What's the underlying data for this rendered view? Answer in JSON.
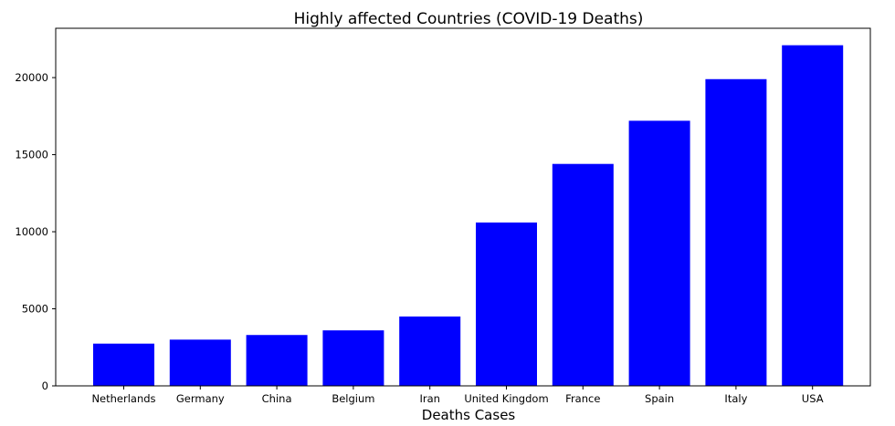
{
  "chart_data": {
    "type": "bar",
    "title": "Highly affected Countries (COVID-19 Deaths)",
    "xlabel": "Deaths Cases",
    "ylabel": "",
    "categories": [
      "Netherlands",
      "Germany",
      "China",
      "Belgium",
      "Iran",
      "United Kingdom",
      "France",
      "Spain",
      "Italy",
      "USA"
    ],
    "values": [
      2740,
      3000,
      3300,
      3600,
      4500,
      10600,
      14400,
      17200,
      19900,
      22100
    ],
    "ylim": [
      0,
      23200
    ],
    "yticks": [
      0,
      5000,
      10000,
      15000,
      20000
    ],
    "bar_color": "#0000ff",
    "grid": false,
    "legend": "none"
  }
}
